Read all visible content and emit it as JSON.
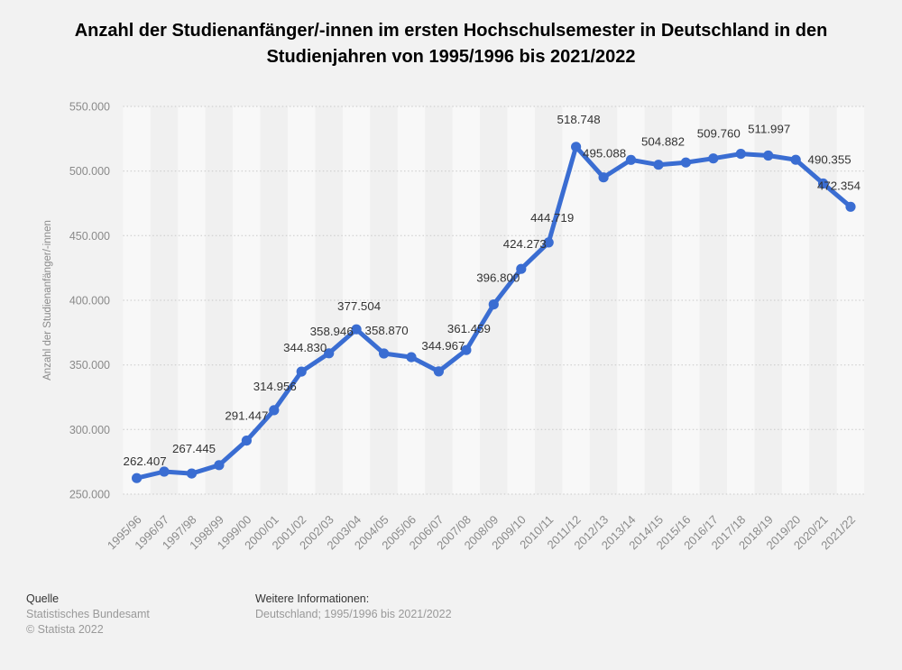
{
  "colors": {
    "background": "#f2f2f2",
    "band_light": "#f8f8f8",
    "band_dark": "#f0f0f0",
    "grid": "#c9c9c9",
    "line": "#3a6dd2",
    "data_label": "#333333",
    "axis_text": "#8a8a8a",
    "title_text": "#000000",
    "footer_label": "#333333",
    "footer_muted": "#999999"
  },
  "chart_data": {
    "type": "line",
    "title": "Anzahl der Studienanfänger/-innen im ersten Hochschulsemester in Deutschland in den Studienjahren von 1995/1996 bis 2021/2022",
    "xlabel": "",
    "ylabel": "Anzahl der Studienanfänger/-innen",
    "ylim": [
      250000,
      550000
    ],
    "ytick_values": [
      250000,
      300000,
      350000,
      400000,
      450000,
      500000,
      550000
    ],
    "ytick_labels": [
      "250.000",
      "300.000",
      "350.000",
      "400.000",
      "450.000",
      "500.000",
      "550.000"
    ],
    "grid": "horizontal-dotted",
    "legend": "none",
    "categories": [
      "1995/96",
      "1996/97",
      "1997/98",
      "1998/99",
      "1999/00",
      "2000/01",
      "2001/02",
      "2002/03",
      "2003/04",
      "2004/05",
      "2005/06",
      "2006/07",
      "2007/08",
      "2008/09",
      "2009/10",
      "2010/11",
      "2011/12",
      "2012/13",
      "2013/14",
      "2014/15",
      "2015/16",
      "2016/17",
      "2017/18",
      "2018/19",
      "2019/20",
      "2020/21",
      "2021/22"
    ],
    "values": [
      262407,
      267445,
      265964,
      272473,
      291447,
      314956,
      344830,
      358946,
      377504,
      358870,
      355961,
      344967,
      361459,
      396800,
      424273,
      444719,
      518748,
      495088,
      508621,
      504882,
      506580,
      509760,
      513305,
      511997,
      508692,
      490355,
      472354
    ],
    "point_labels": [
      "262.407",
      "267.445",
      null,
      null,
      "291.447",
      "314.956",
      "344.830",
      "358.946",
      "377.504",
      "358.870",
      null,
      "344.967",
      "361.459",
      "396.800",
      "424.273",
      "444.719",
      "518.748",
      "495.088",
      null,
      "504.882",
      null,
      "509.760",
      null,
      "511.997",
      null,
      "490.355",
      "472.354"
    ],
    "label_offsets": [
      [
        9,
        -14
      ],
      [
        33,
        -21
      ],
      null,
      null,
      [
        0,
        -23
      ],
      [
        1,
        -22
      ],
      [
        4,
        -22
      ],
      [
        3,
        -20
      ],
      [
        3,
        -21
      ],
      [
        3,
        -21
      ],
      null,
      [
        5,
        -24
      ],
      [
        3,
        -19
      ],
      [
        5,
        -25
      ],
      [
        4,
        -23
      ],
      [
        4,
        -23
      ],
      [
        3,
        -26
      ],
      [
        1,
        -22
      ],
      null,
      [
        5,
        -21
      ],
      null,
      [
        6,
        -23
      ],
      null,
      [
        1,
        -25
      ],
      null,
      [
        7,
        -22
      ],
      [
        -13,
        -19
      ]
    ]
  },
  "footer": {
    "source_label": "Quelle",
    "source": "Statistisches Bundesamt",
    "copyright": "© Statista 2022",
    "info_label": "Weitere Informationen:",
    "info": "Deutschland; 1995/1996 bis 2021/2022"
  }
}
